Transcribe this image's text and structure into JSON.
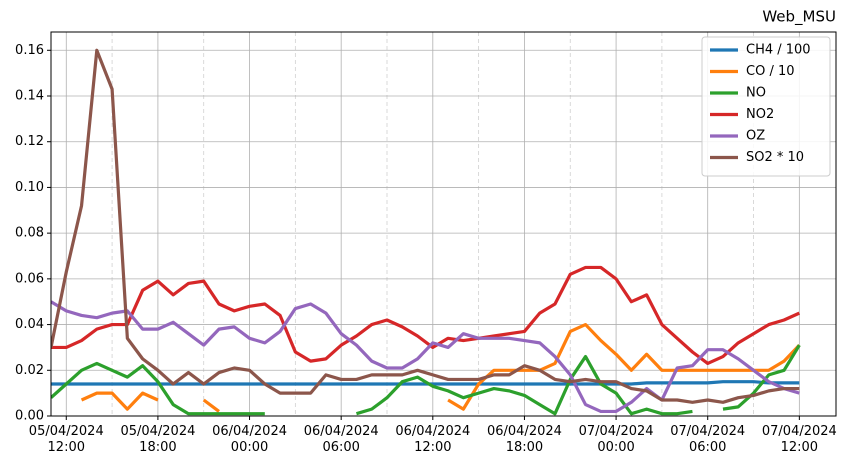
{
  "chart_data": {
    "type": "line",
    "title": "Web_MSU",
    "x": [
      "2024-04-05 11:00",
      "2024-04-05 12:00",
      "2024-04-05 13:00",
      "2024-04-05 14:00",
      "2024-04-05 15:00",
      "2024-04-05 16:00",
      "2024-04-05 17:00",
      "2024-04-05 18:00",
      "2024-04-05 19:00",
      "2024-04-05 20:00",
      "2024-04-05 21:00",
      "2024-04-05 22:00",
      "2024-04-05 23:00",
      "2024-04-06 00:00",
      "2024-04-06 01:00",
      "2024-04-06 02:00",
      "2024-04-06 03:00",
      "2024-04-06 04:00",
      "2024-04-06 05:00",
      "2024-04-06 06:00",
      "2024-04-06 07:00",
      "2024-04-06 08:00",
      "2024-04-06 09:00",
      "2024-04-06 10:00",
      "2024-04-06 11:00",
      "2024-04-06 12:00",
      "2024-04-06 13:00",
      "2024-04-06 14:00",
      "2024-04-06 15:00",
      "2024-04-06 16:00",
      "2024-04-06 17:00",
      "2024-04-06 18:00",
      "2024-04-06 19:00",
      "2024-04-06 20:00",
      "2024-04-06 21:00",
      "2024-04-06 22:00",
      "2024-04-06 23:00",
      "2024-04-07 00:00",
      "2024-04-07 01:00",
      "2024-04-07 02:00",
      "2024-04-07 03:00",
      "2024-04-07 04:00",
      "2024-04-07 05:00",
      "2024-04-07 06:00",
      "2024-04-07 07:00",
      "2024-04-07 08:00",
      "2024-04-07 09:00",
      "2024-04-07 10:00",
      "2024-04-07 11:00",
      "2024-04-07 12:00"
    ],
    "series": [
      {
        "name": "CH4 / 100",
        "color": "#1f77b4",
        "values": [
          0.014,
          0.014,
          0.014,
          0.014,
          0.014,
          0.014,
          0.014,
          0.014,
          0.014,
          0.014,
          0.014,
          0.014,
          0.014,
          0.014,
          0.014,
          0.014,
          0.014,
          0.014,
          0.014,
          0.014,
          0.014,
          0.014,
          0.014,
          0.014,
          0.014,
          0.014,
          0.014,
          0.014,
          0.014,
          0.014,
          0.014,
          0.014,
          0.014,
          0.014,
          0.014,
          0.014,
          0.014,
          0.014,
          0.014,
          0.0145,
          0.0145,
          0.0145,
          0.0145,
          0.0145,
          0.015,
          0.015,
          0.015,
          0.0145,
          0.0145,
          0.0145
        ]
      },
      {
        "name": "CO / 10",
        "color": "#ff7f0e",
        "values": [
          null,
          null,
          0.007,
          0.01,
          0.01,
          0.003,
          0.01,
          0.007,
          null,
          null,
          0.007,
          0.002,
          null,
          null,
          null,
          null,
          null,
          null,
          null,
          null,
          null,
          null,
          null,
          null,
          null,
          null,
          0.007,
          0.003,
          0.014,
          0.02,
          0.02,
          0.02,
          0.02,
          0.023,
          0.037,
          0.04,
          0.033,
          0.027,
          0.02,
          0.027,
          0.02,
          0.02,
          0.02,
          0.02,
          0.02,
          0.02,
          0.02,
          0.02,
          0.024,
          0.031
        ]
      },
      {
        "name": "NO",
        "color": "#2ca02c",
        "values": [
          0.008,
          0.014,
          0.02,
          0.023,
          0.02,
          0.017,
          0.022,
          0.015,
          0.005,
          0.001,
          0.001,
          0.001,
          0.001,
          0.001,
          0.001,
          null,
          null,
          null,
          null,
          null,
          0.001,
          0.003,
          0.008,
          0.015,
          0.017,
          0.013,
          0.011,
          0.008,
          0.01,
          0.012,
          0.011,
          0.009,
          0.005,
          0.001,
          0.016,
          0.026,
          0.014,
          0.01,
          0.001,
          0.003,
          0.001,
          0.001,
          0.002,
          null,
          0.003,
          0.004,
          0.01,
          0.018,
          0.02,
          0.031
        ]
      },
      {
        "name": "NO2",
        "color": "#d62728",
        "values": [
          0.03,
          0.03,
          0.033,
          0.038,
          0.04,
          0.04,
          0.055,
          0.059,
          0.053,
          0.058,
          0.059,
          0.049,
          0.046,
          0.048,
          0.049,
          0.044,
          0.028,
          0.024,
          0.025,
          0.031,
          0.035,
          0.04,
          0.042,
          0.039,
          0.035,
          0.03,
          0.034,
          0.033,
          0.034,
          0.035,
          0.036,
          0.037,
          0.045,
          0.049,
          0.062,
          0.065,
          0.065,
          0.06,
          0.05,
          0.053,
          0.04,
          0.034,
          0.028,
          0.023,
          0.026,
          0.032,
          0.036,
          0.04,
          0.042,
          0.045
        ]
      },
      {
        "name": "OZ",
        "color": "#9467bd",
        "values": [
          0.05,
          0.046,
          0.044,
          0.043,
          0.045,
          0.046,
          0.038,
          0.038,
          0.041,
          0.036,
          0.031,
          0.038,
          0.039,
          0.034,
          0.032,
          0.037,
          0.047,
          0.049,
          0.045,
          0.036,
          0.031,
          0.024,
          0.021,
          0.021,
          0.025,
          0.032,
          0.03,
          0.036,
          0.034,
          0.034,
          0.034,
          0.033,
          0.032,
          0.026,
          0.018,
          0.005,
          0.002,
          0.002,
          0.006,
          0.012,
          0.007,
          0.021,
          0.022,
          0.029,
          0.029,
          0.025,
          0.02,
          0.015,
          0.012,
          0.01
        ]
      },
      {
        "name": "SO2 * 10",
        "color": "#8c564b",
        "values": [
          0.03,
          0.063,
          0.092,
          0.16,
          0.143,
          0.034,
          0.025,
          0.02,
          0.014,
          0.019,
          0.014,
          0.019,
          0.021,
          0.02,
          0.014,
          0.01,
          0.01,
          0.01,
          0.018,
          0.016,
          0.016,
          0.018,
          0.018,
          0.018,
          0.02,
          0.018,
          0.016,
          0.016,
          0.016,
          0.018,
          0.018,
          0.022,
          0.02,
          0.016,
          0.015,
          0.016,
          0.015,
          0.015,
          0.012,
          0.011,
          0.007,
          0.007,
          0.006,
          0.007,
          0.006,
          0.008,
          0.009,
          0.011,
          0.012,
          0.012
        ]
      }
    ],
    "xlim": [
      "2024-04-05 11:00",
      "2024-04-07 14:24"
    ],
    "xticks": [
      {
        "value": "2024-04-05 12:00",
        "label": "05/04/2024\n12:00"
      },
      {
        "value": "2024-04-05 18:00",
        "label": "05/04/2024\n18:00"
      },
      {
        "value": "2024-04-06 00:00",
        "label": "06/04/2024\n00:00"
      },
      {
        "value": "2024-04-06 06:00",
        "label": "06/04/2024\n06:00"
      },
      {
        "value": "2024-04-06 12:00",
        "label": "06/04/2024\n12:00"
      },
      {
        "value": "2024-04-06 18:00",
        "label": "06/04/2024\n18:00"
      },
      {
        "value": "2024-04-07 00:00",
        "label": "07/04/2024\n00:00"
      },
      {
        "value": "2024-04-07 06:00",
        "label": "07/04/2024\n06:00"
      },
      {
        "value": "2024-04-07 12:00",
        "label": "07/04/2024\n12:00"
      }
    ],
    "xminorticks": [
      "2024-04-05 15:00",
      "2024-04-05 21:00",
      "2024-04-06 03:00",
      "2024-04-06 09:00",
      "2024-04-06 15:00",
      "2024-04-06 21:00",
      "2024-04-07 03:00",
      "2024-04-07 09:00"
    ],
    "ylim": [
      0,
      0.168
    ],
    "yticks": [
      {
        "value": 0,
        "label": "0.00"
      },
      {
        "value": 0.02,
        "label": "0.02"
      },
      {
        "value": 0.04,
        "label": "0.04"
      },
      {
        "value": 0.06,
        "label": "0.06"
      },
      {
        "value": 0.08,
        "label": "0.08"
      },
      {
        "value": 0.1,
        "label": "0.10"
      },
      {
        "value": 0.12,
        "label": "0.12"
      },
      {
        "value": 0.14,
        "label": "0.14"
      },
      {
        "value": 0.16,
        "label": "0.16"
      }
    ],
    "grid": true,
    "legend": "upper right"
  }
}
